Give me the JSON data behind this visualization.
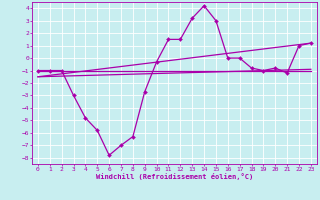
{
  "title": "",
  "xlabel": "Windchill (Refroidissement éolien,°C)",
  "bg_color": "#c8eef0",
  "grid_color": "#ffffff",
  "line_color": "#aa00aa",
  "xlim": [
    -0.5,
    23.5
  ],
  "ylim": [
    -8.5,
    4.5
  ],
  "xticks": [
    0,
    1,
    2,
    3,
    4,
    5,
    6,
    7,
    8,
    9,
    10,
    11,
    12,
    13,
    14,
    15,
    16,
    17,
    18,
    19,
    20,
    21,
    22,
    23
  ],
  "yticks": [
    -8,
    -7,
    -6,
    -5,
    -4,
    -3,
    -2,
    -1,
    0,
    1,
    2,
    3,
    4
  ],
  "series": [
    {
      "x": [
        0,
        1,
        2,
        3,
        4,
        5,
        6,
        7,
        8,
        9,
        10,
        11,
        12,
        13,
        14,
        15,
        16,
        17,
        18,
        19,
        20,
        21,
        22,
        23
      ],
      "y": [
        -1,
        -1,
        -1,
        -3,
        -4.8,
        -5.8,
        -7.8,
        -7,
        -6.3,
        -2.7,
        -0.3,
        1.5,
        1.5,
        3.2,
        4.2,
        3,
        0,
        0,
        -0.8,
        -1,
        -0.8,
        -1.2,
        1,
        1.2
      ],
      "marker": "D",
      "markersize": 2.0,
      "linewidth": 0.9
    },
    {
      "x": [
        0,
        23
      ],
      "y": [
        -1,
        -1
      ],
      "marker": null,
      "markersize": 0,
      "linewidth": 0.9
    },
    {
      "x": [
        0,
        23
      ],
      "y": [
        -1.5,
        -0.9
      ],
      "marker": null,
      "markersize": 0,
      "linewidth": 0.9
    },
    {
      "x": [
        0,
        23
      ],
      "y": [
        -1.5,
        1.2
      ],
      "marker": null,
      "markersize": 0,
      "linewidth": 0.9
    }
  ]
}
